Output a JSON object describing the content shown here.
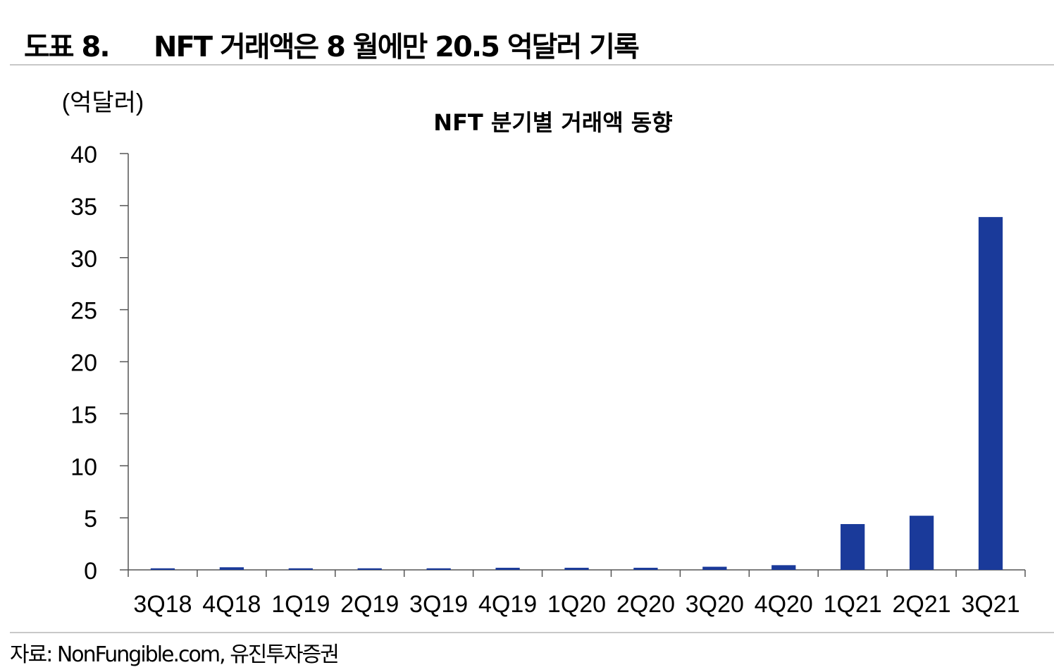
{
  "figure": {
    "label": "도표 8.",
    "title": "NFT 거래액은 8 월에만 20.5 억달러 기록",
    "source": "자료: NonFungible.com, 유진투자증권"
  },
  "colors": {
    "bar": "#1a3a9a",
    "axis": "#555555",
    "rule": "#c8c8c8"
  },
  "chart_data": {
    "type": "bar",
    "title": "NFT 분기별 거래액 동향",
    "unit_label": "(억달러)",
    "categories": [
      "3Q18",
      "4Q18",
      "1Q19",
      "2Q19",
      "3Q19",
      "4Q19",
      "1Q20",
      "2Q20",
      "3Q20",
      "4Q20",
      "1Q21",
      "2Q21",
      "3Q21"
    ],
    "values": [
      0.15,
      0.25,
      0.15,
      0.15,
      0.15,
      0.2,
      0.2,
      0.2,
      0.3,
      0.45,
      4.4,
      5.2,
      33.9
    ],
    "ylim": [
      0,
      40
    ],
    "yticks": [
      0,
      5,
      10,
      15,
      20,
      25,
      30,
      35,
      40
    ],
    "grid": false,
    "legend": "none"
  }
}
